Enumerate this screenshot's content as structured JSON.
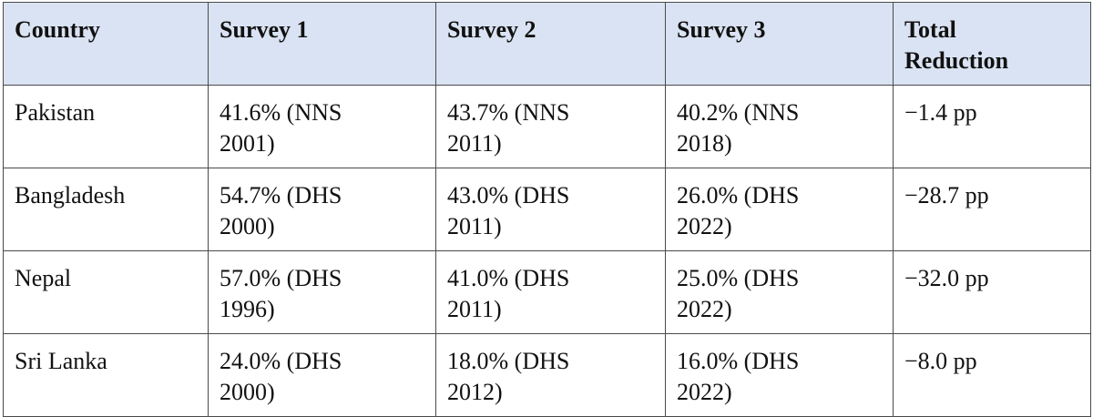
{
  "table": {
    "header": [
      "Country",
      "Survey 1",
      "Survey 2",
      "Survey 3",
      "Total Reduction"
    ],
    "rows": [
      [
        "Pakistan",
        "41.6% (NNS 2001)",
        "43.7% (NNS 2011)",
        "40.2% (NNS 2018)",
        "−1.4 pp"
      ],
      [
        "Bangladesh",
        "54.7% (DHS 2000)",
        "43.0% (DHS 2011)",
        "26.0% (DHS 2022)",
        "−28.7 pp"
      ],
      [
        "Nepal",
        "57.0% (DHS 1996)",
        "41.0% (DHS 2011)",
        "25.0% (DHS 2022)",
        "−32.0 pp"
      ],
      [
        "Sri Lanka",
        "24.0% (DHS 2000)",
        "18.0% (DHS 2012)",
        "16.0% (DHS 2022)",
        "−8.0 pp"
      ]
    ]
  }
}
